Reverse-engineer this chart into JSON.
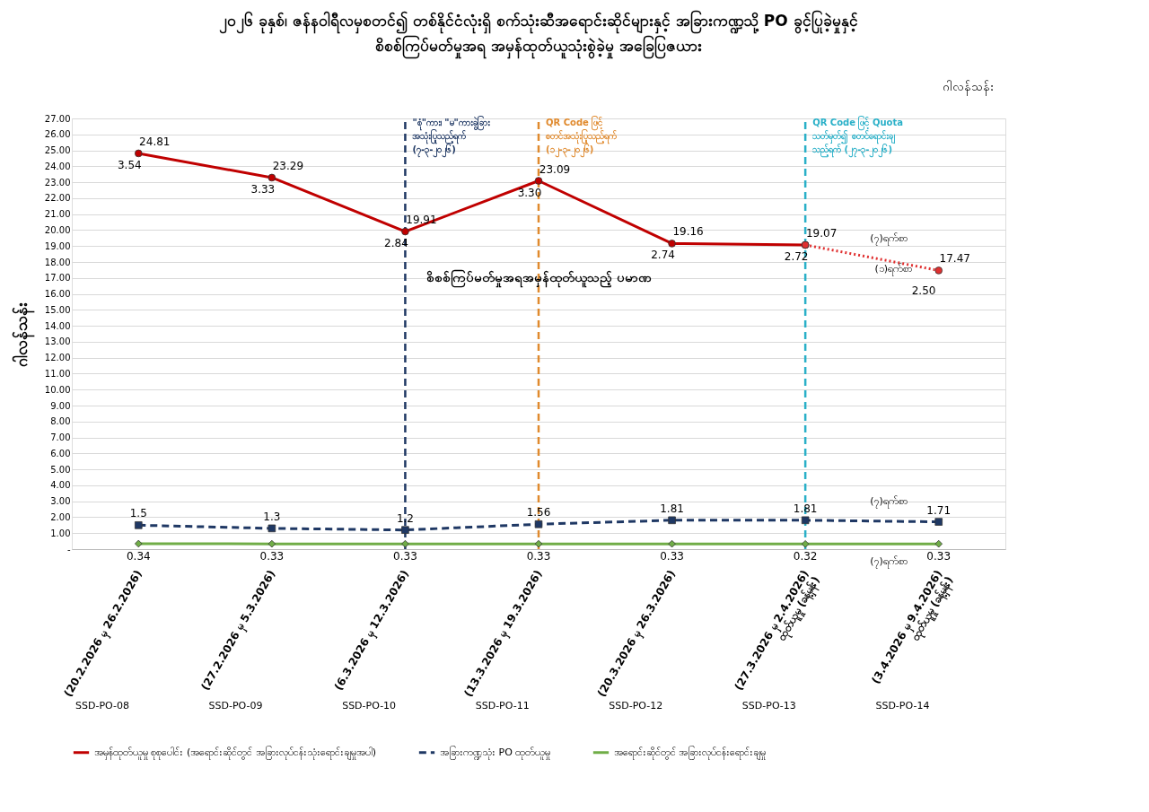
{
  "chart_data": {
    "type": "line",
    "title": [
      "၂၀၂၆ ခုနှစ်၊ ဇန်နဝါရီလမှစတင်၍ တစ်နိုင်ငံလုံးရှိ စက်သုံးဆီအရောင်းဆိုင်များနှင့် အခြားကဏ္ဍသို့ PO ခွင့်ပြုခဲ့မှုနှင့်",
      "စိစစ်ကြပ်မတ်မှုအရ အမှန်ထုတ်ယူသုံးစွဲခဲ့မှု အခြေပြဇယား"
    ],
    "ylabel": "ဂါလန်သန်း",
    "categories": [
      "(20.2.2026 မှ 26.2.2026)",
      "(27.2.2026 မှ 5.3.2026)",
      "(6.3.2026 မှ 12.3.2026)",
      "(13.3.2026 မှ 19.3.2026)",
      "(20.3.2026 မှ 26.3.2026)",
      "(27.3.2026 မှ 2.4.2026)\nထုတ်ယူမှု (ခန့်မှန်း)",
      "(3.4.2026 မှ 9.4.2026)\nထုတ်ယူမှု (ခန့်မှန်း)"
    ],
    "series": [
      {
        "name": "အမှန်ထုတ်ယူမှု စုစုပေါင်း (အရောင်းဆိုင်တွင် အခြားလုပ်ငန်းသုံးရောင်းချမှုအပါ)",
        "color": "#c00000",
        "marker": "circle",
        "line_style": "solid",
        "values": [
          24.81,
          23.29,
          19.91,
          23.09,
          19.16,
          19.07,
          null
        ],
        "value_labels": [
          "24.81",
          "23.29",
          "19.91",
          "23.09",
          "19.16",
          "19.07",
          null
        ]
      },
      {
        "color": "#e03030",
        "marker": "circle",
        "line_style": "dotted",
        "values": [
          null,
          null,
          null,
          null,
          null,
          19.07,
          17.47
        ],
        "value_labels": [
          null,
          null,
          null,
          null,
          null,
          null,
          "17.47"
        ]
      },
      {
        "name": "အခြားကဏ္ဍသုံး PO ထုတ်ယူမှု",
        "color": "#1f3864",
        "marker": "square",
        "line_style": "dashed",
        "values": [
          1.5,
          1.3,
          1.2,
          1.56,
          1.81,
          1.81,
          1.71
        ],
        "value_labels": [
          "1.5",
          "1.3",
          "1.2",
          "1.56",
          "1.81",
          "1.81",
          "1.71"
        ]
      },
      {
        "name": "အရောင်းဆိုင်တွင် အခြားလုပ်ငန်းရောင်းချမှု",
        "color": "#70ad47",
        "marker": "diamond",
        "line_style": "solid",
        "values": [
          0.34,
          0.33,
          0.33,
          0.33,
          0.33,
          0.32,
          0.33
        ],
        "value_labels": [
          "0.34",
          "0.33",
          "0.33",
          "0.33",
          "0.33",
          "0.32",
          "0.33"
        ]
      }
    ],
    "ylim": [
      0,
      27
    ],
    "yticks": [
      {
        "value": 0,
        "label": "-"
      },
      {
        "value": 1,
        "label": "1.00"
      },
      {
        "value": 2,
        "label": "2.00"
      },
      {
        "value": 3,
        "label": "3.00"
      },
      {
        "value": 4,
        "label": "4.00"
      },
      {
        "value": 5,
        "label": "5.00"
      },
      {
        "value": 6,
        "label": "6.00"
      },
      {
        "value": 7,
        "label": "7.00"
      },
      {
        "value": 8,
        "label": "8.00"
      },
      {
        "value": 9,
        "label": "9.00"
      },
      {
        "value": 10,
        "label": "10.00"
      },
      {
        "value": 11,
        "label": "11.00"
      },
      {
        "value": 12,
        "label": "12.00"
      },
      {
        "value": 13,
        "label": "13.00"
      },
      {
        "value": 14,
        "label": "14.00"
      },
      {
        "value": 15,
        "label": "15.00"
      },
      {
        "value": 16,
        "label": "16.00"
      },
      {
        "value": 17,
        "label": "17.00"
      },
      {
        "value": 18,
        "label": "18.00"
      },
      {
        "value": 19,
        "label": "19.00"
      },
      {
        "value": 20,
        "label": "20.00"
      },
      {
        "value": 21,
        "label": "21.00"
      },
      {
        "value": 22,
        "label": "22.00"
      },
      {
        "value": 23,
        "label": "23.00"
      },
      {
        "value": 24,
        "label": "24.00"
      },
      {
        "value": 25,
        "label": "25.00"
      },
      {
        "value": 26,
        "label": "26.00"
      },
      {
        "value": 27,
        "label": "27.00"
      }
    ],
    "grid": "y",
    "legend": "bottom",
    "ref_lines": [
      {
        "axis": "x",
        "value": "(6.3.2026 မှ 12.3.2026)",
        "label": "\"စုံ\"ကား၊ \"မ\"ကားခွဲခြား\nအသုံးပြုသည့်ရက်\n(၇-၃-၂၀၂၆)",
        "color": "#1f3864",
        "line_style": "dashed"
      },
      {
        "axis": "x",
        "value": "(13.3.2026 မှ 19.3.2026)",
        "label": "QR Code ဖြင့်\nစတင်အသုံးပြုသည့်ရက်\n(၁၂-၃-၂၀၂၆)",
        "color": "#e08a2e",
        "line_style": "dashed"
      },
      {
        "axis": "x",
        "value": "(27.3.2026 မှ 2.4.2026)\nထုတ်ယူမှု (ခန့်မှန်း)",
        "label": "QR Code ဖြင့် Quota\nသတ်မှတ်၍ စတင်ရောင်းချ\nသည့်ရက် (၂၇-၃-၂၀၂၆)",
        "color": "#2ab0c8",
        "line_style": "dashed"
      }
    ],
    "annotations": [
      "ဂါလန်သန်း",
      "စိစစ်ကြပ်မတ်မှုအရအမှန်ထုတ်ယူသည့် ပမာဏ",
      "(၇)ရက်စာ",
      "(၁)ရက်စာ",
      "(၇)ရက်စာ",
      "(၇)ရက်စာ",
      "SSD-PO-08",
      "SSD-PO-09",
      "SSD-PO-10",
      "SSD-PO-11",
      "SSD-PO-12",
      "SSD-PO-13",
      "SSD-PO-14",
      {
        "text": "3.54",
        "x": "(20.2.2026 မှ 26.2.2026)",
        "y": 24.81
      },
      {
        "text": "3.33",
        "x": "(27.2.2026 မှ 5.3.2026)",
        "y": 23.29
      },
      {
        "text": "2.84",
        "x": "(6.3.2026 မှ 12.3.2026)",
        "y": 19.91
      },
      {
        "text": "3.30",
        "x": "(13.3.2026 မှ 19.3.2026)",
        "y": 23.09
      },
      {
        "text": "2.74",
        "x": "(20.3.2026 မှ 26.3.2026)",
        "y": 19.16
      },
      {
        "text": "2.72",
        "x": "(27.3.2026 မှ 2.4.2026)\nထုတ်ယူမှု (ခန့်မှန်း)",
        "y": 19.07
      },
      "2.50"
    ]
  }
}
